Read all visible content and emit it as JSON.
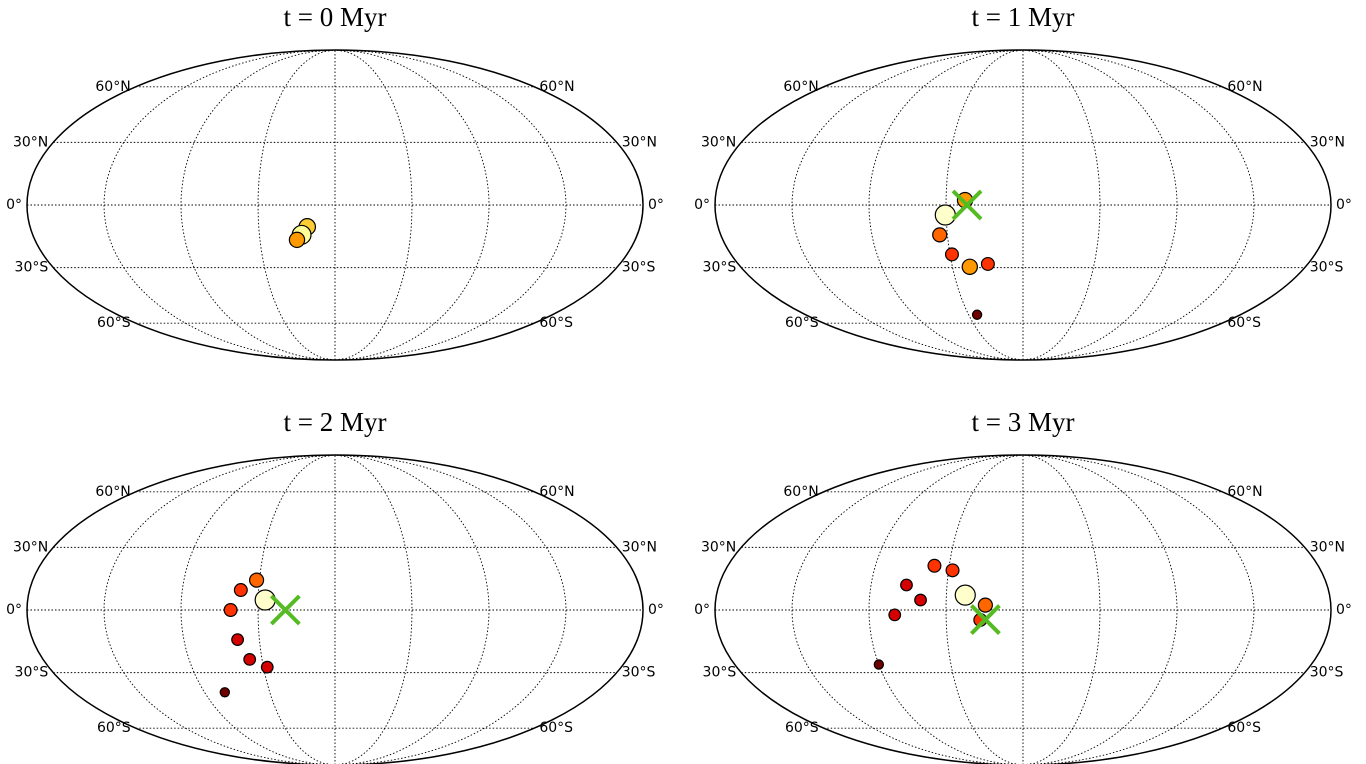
{
  "chart_data": [
    {
      "type": "mollweide",
      "title": "t = 0 Myr",
      "xlim": [
        -180,
        180
      ],
      "ylim": [
        -90,
        90
      ],
      "xticks": [
        -135,
        -90,
        -45,
        0,
        45,
        90,
        135
      ],
      "yticks": [
        {
          "value": -60,
          "label": "60°S"
        },
        {
          "value": -30,
          "label": "30°S"
        },
        {
          "value": 0,
          "label": "0°"
        },
        {
          "value": 30,
          "label": "30°N"
        },
        {
          "value": 60,
          "label": "60°N"
        }
      ],
      "grid": true,
      "density": {
        "x": [
          -16.4,
          -19.9,
          -22.8
        ],
        "y": [
          -10.3,
          -14.1,
          -16.5
        ],
        "values": [
          0.7,
          0.9,
          0.6
        ]
      }
    },
    {
      "type": "mollweide",
      "title": "t = 1 Myr",
      "xlim": [
        -180,
        180
      ],
      "ylim": [
        -90,
        90
      ],
      "xticks": [
        -135,
        -90,
        -45,
        0,
        45,
        90,
        135
      ],
      "yticks": [
        {
          "value": -60,
          "label": "60°S"
        },
        {
          "value": -30,
          "label": "30°S"
        },
        {
          "value": 0,
          "label": "0°"
        },
        {
          "value": 30,
          "label": "30°N"
        },
        {
          "value": 60,
          "label": "60°N"
        }
      ],
      "grid": true,
      "density": {
        "x": [
          -33.9,
          -45.5,
          -49.6,
          -43.8,
          -33.9,
          -22.2,
          -38
        ],
        "y": [
          2.3,
          -4.7,
          -14.1,
          -23.5,
          -29.6,
          -28.2,
          -55
        ],
        "values": [
          0.6,
          1,
          0.5,
          0.4,
          0.6,
          0.4,
          0.1
        ]
      },
      "marker": {
        "color": "#55bb22",
        "x": -32.7,
        "y": 0
      }
    },
    {
      "type": "mollweide",
      "title": "t = 2 Myr",
      "xlim": [
        -180,
        180
      ],
      "ylim": [
        -90,
        90
      ],
      "xticks": [
        -135,
        -90,
        -45,
        0,
        45,
        90,
        135
      ],
      "yticks": [
        {
          "value": -60,
          "label": "60°S"
        },
        {
          "value": -30,
          "label": "30°S"
        },
        {
          "value": 0,
          "label": "0°"
        },
        {
          "value": 30,
          "label": "30°N"
        },
        {
          "value": 60,
          "label": "60°N"
        }
      ],
      "grid": true,
      "density": {
        "x": [
          -40.9,
          -46.7,
          -55.5,
          -61,
          -58,
          -52.6,
          -42.6,
          -76
        ],
        "y": [
          4.7,
          14.1,
          9.4,
          0,
          -14,
          -23.5,
          -27.3,
          -40
        ],
        "values": [
          1,
          0.5,
          0.4,
          0.4,
          0.3,
          0.3,
          0.3,
          0.1
        ]
      },
      "marker": {
        "color": "#55bb22",
        "x": -29,
        "y": 0
      }
    },
    {
      "type": "mollweide",
      "title": "t = 3 Myr",
      "xlim": [
        -180,
        180
      ],
      "ylim": [
        -90,
        90
      ],
      "xticks": [
        -135,
        -90,
        -45,
        0,
        45,
        90,
        135
      ],
      "yticks": [
        {
          "value": -60,
          "label": "60°S"
        },
        {
          "value": -30,
          "label": "30°S"
        },
        {
          "value": 0,
          "label": "0°"
        },
        {
          "value": 30,
          "label": "30°N"
        },
        {
          "value": 60,
          "label": "60°N"
        }
      ],
      "grid": true,
      "density": {
        "x": [
          -33.9,
          -42.6,
          -54,
          -69,
          -75,
          -60,
          -22,
          -25,
          -90
        ],
        "y": [
          7,
          18.8,
          21,
          11.8,
          -2.3,
          4.7,
          2.3,
          -4.7,
          -26
        ],
        "values": [
          1,
          0.4,
          0.4,
          0.3,
          0.3,
          0.3,
          0.5,
          0.4,
          0.1
        ]
      },
      "marker": {
        "color": "#55bb22",
        "x": -22,
        "y": -4.5
      }
    }
  ]
}
